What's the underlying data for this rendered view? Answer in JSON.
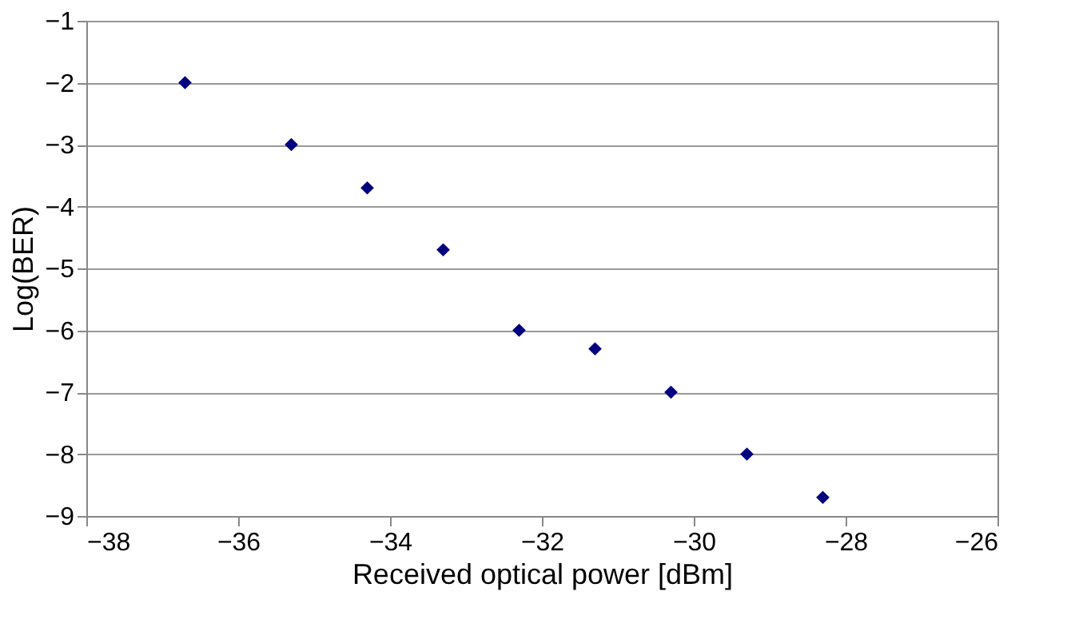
{
  "chart_data": {
    "type": "scatter",
    "xlabel": "Received optical power [dBm]",
    "ylabel": "Log(BER)",
    "x": [
      -36.7,
      -35.3,
      -34.3,
      -33.3,
      -32.3,
      -31.3,
      -30.3,
      -29.3,
      -28.3
    ],
    "series": [
      {
        "color": "#000080",
        "values": [
          -2,
          -3,
          -3.7,
          -4.7,
          -6,
          -6.3,
          -7,
          -8,
          -8.7
        ]
      }
    ],
    "xlim": [
      -38,
      -26
    ],
    "xticks": [
      -38,
      -36,
      -34,
      -32,
      -30,
      -28,
      -26
    ],
    "ylim": [
      -9,
      -1
    ],
    "yticks": [
      -9,
      -8,
      -7,
      -6,
      -5,
      -4,
      -3,
      -2,
      -1
    ],
    "grid": "y",
    "marker": "diamond"
  }
}
